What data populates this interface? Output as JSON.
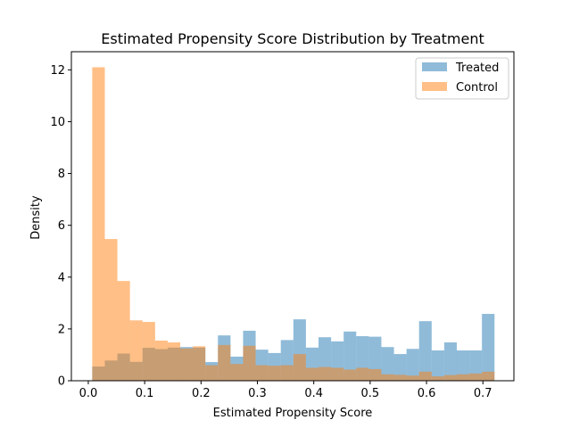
{
  "chart_data": {
    "type": "histogram",
    "title": "Estimated Propensity Score Distribution by Treatment",
    "xlabel": "Estimated Propensity Score",
    "ylabel": "Density",
    "xlim": [
      -0.03,
      0.755
    ],
    "ylim": [
      0,
      12.7
    ],
    "x_ticks": [
      0.0,
      0.1,
      0.2,
      0.3,
      0.4,
      0.5,
      0.6,
      0.7
    ],
    "x_tick_labels": [
      "0.0",
      "0.1",
      "0.2",
      "0.3",
      "0.4",
      "0.5",
      "0.6",
      "0.7"
    ],
    "y_ticks": [
      0,
      2,
      4,
      6,
      8,
      10,
      12
    ],
    "y_tick_labels": [
      "0",
      "2",
      "4",
      "6",
      "8",
      "10",
      "12"
    ],
    "grid": false,
    "legend_position": "upper right",
    "series": [
      {
        "name": "Treated",
        "color": "#1f77b4",
        "alpha": 0.5,
        "bins": [
          [
            0.007,
            0.0293,
            0.55
          ],
          [
            0.0293,
            0.0516,
            0.78
          ],
          [
            0.0516,
            0.0739,
            1.05
          ],
          [
            0.0739,
            0.0962,
            0.73
          ],
          [
            0.0962,
            0.1185,
            1.27
          ],
          [
            0.1185,
            0.1408,
            1.22
          ],
          [
            0.1408,
            0.1631,
            1.28
          ],
          [
            0.1631,
            0.1854,
            1.3
          ],
          [
            0.1854,
            0.2077,
            1.28
          ],
          [
            0.2077,
            0.23,
            0.72
          ],
          [
            0.23,
            0.2523,
            1.75
          ],
          [
            0.2523,
            0.2746,
            0.93
          ],
          [
            0.2746,
            0.2969,
            1.93
          ],
          [
            0.2969,
            0.3192,
            1.2
          ],
          [
            0.3192,
            0.3415,
            1.07
          ],
          [
            0.3415,
            0.3638,
            1.57
          ],
          [
            0.3638,
            0.3861,
            2.37
          ],
          [
            0.3861,
            0.4084,
            1.28
          ],
          [
            0.4084,
            0.4307,
            1.68
          ],
          [
            0.4307,
            0.453,
            1.52
          ],
          [
            0.453,
            0.4753,
            1.9
          ],
          [
            0.4753,
            0.4976,
            1.72
          ],
          [
            0.4976,
            0.5199,
            1.7
          ],
          [
            0.5199,
            0.5422,
            1.3
          ],
          [
            0.5422,
            0.5645,
            1.03
          ],
          [
            0.5645,
            0.5868,
            1.23
          ],
          [
            0.5868,
            0.6091,
            2.3
          ],
          [
            0.6091,
            0.6314,
            1.17
          ],
          [
            0.6314,
            0.6537,
            1.48
          ],
          [
            0.6537,
            0.676,
            1.17
          ],
          [
            0.676,
            0.6983,
            1.17
          ],
          [
            0.6983,
            0.7206,
            2.58
          ]
        ]
      },
      {
        "name": "Control",
        "color": "#ff7f0e",
        "alpha": 0.5,
        "bins": [
          [
            0.007,
            0.0293,
            12.1
          ],
          [
            0.0293,
            0.0516,
            5.47
          ],
          [
            0.0516,
            0.0739,
            3.85
          ],
          [
            0.0739,
            0.0962,
            2.33
          ],
          [
            0.0962,
            0.1185,
            2.27
          ],
          [
            0.1185,
            0.1408,
            1.55
          ],
          [
            0.1408,
            0.1631,
            1.48
          ],
          [
            0.1631,
            0.1854,
            1.25
          ],
          [
            0.1854,
            0.2077,
            1.33
          ],
          [
            0.2077,
            0.23,
            0.6
          ],
          [
            0.23,
            0.2523,
            1.38
          ],
          [
            0.2523,
            0.2746,
            0.65
          ],
          [
            0.2746,
            0.2969,
            1.35
          ],
          [
            0.2969,
            0.3192,
            0.6
          ],
          [
            0.3192,
            0.3415,
            0.58
          ],
          [
            0.3415,
            0.3638,
            0.6
          ],
          [
            0.3638,
            0.3861,
            1.03
          ],
          [
            0.3861,
            0.4084,
            0.5
          ],
          [
            0.4084,
            0.4307,
            0.53
          ],
          [
            0.4307,
            0.453,
            0.5
          ],
          [
            0.453,
            0.4753,
            0.43
          ],
          [
            0.4753,
            0.4976,
            0.5
          ],
          [
            0.4976,
            0.5199,
            0.45
          ],
          [
            0.5199,
            0.5422,
            0.25
          ],
          [
            0.5422,
            0.5645,
            0.23
          ],
          [
            0.5645,
            0.5868,
            0.2
          ],
          [
            0.5868,
            0.6091,
            0.35
          ],
          [
            0.6091,
            0.6314,
            0.17
          ],
          [
            0.6314,
            0.6537,
            0.22
          ],
          [
            0.6537,
            0.676,
            0.25
          ],
          [
            0.676,
            0.6983,
            0.28
          ],
          [
            0.6983,
            0.7206,
            0.35
          ]
        ]
      }
    ]
  }
}
